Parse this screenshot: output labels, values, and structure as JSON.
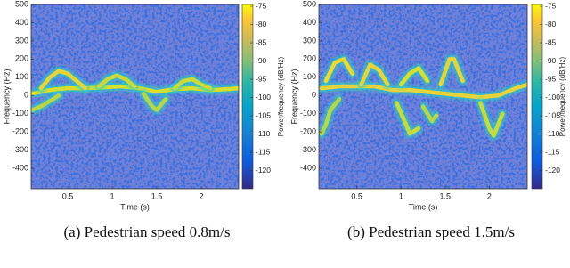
{
  "chart_data": [
    {
      "type": "spectrogram",
      "caption": "(a) Pedestrian speed 0.8m/s",
      "x_label": "Time (s)",
      "y_label": "Frequency (Hz)",
      "colorbar_label": "Power/frequency (dB/Hz)",
      "xlim": [
        0.09,
        2.42
      ],
      "xticks": [
        0.5,
        1,
        1.5,
        2
      ],
      "ylim": [
        -512,
        500
      ],
      "yticks": [
        -400,
        -300,
        -200,
        -100,
        0,
        100,
        200,
        300,
        400,
        500
      ],
      "clim": [
        -125,
        -74.5
      ],
      "cticks": [
        -120,
        -115,
        -110,
        -105,
        -100,
        -95,
        -90,
        -85,
        -80,
        -75
      ],
      "series": [
        {
          "color": "#d8df2c",
          "x": [
            0.1,
            0.3,
            0.5,
            0.7,
            0.9,
            1.1,
            1.3,
            1.5,
            1.7,
            1.9,
            2.1,
            2.3,
            2.42
          ],
          "values": [
            10,
            30,
            40,
            40,
            45,
            50,
            40,
            20,
            35,
            40,
            30,
            35,
            40
          ]
        },
        {
          "color": "#e8d43a",
          "x": [
            0.2,
            0.3,
            0.4,
            0.5,
            0.6,
            0.7
          ],
          "values": [
            40,
            100,
            135,
            120,
            80,
            40
          ]
        },
        {
          "color": "#c9da3a",
          "x": [
            0.85,
            0.95,
            1.05,
            1.15,
            1.25
          ],
          "values": [
            50,
            90,
            110,
            90,
            50
          ]
        },
        {
          "color": "#b9d64a",
          "x": [
            0.1,
            0.2,
            0.3,
            0.4
          ],
          "values": [
            -80,
            -60,
            -30,
            0
          ]
        },
        {
          "color": "#b9d64a",
          "x": [
            1.35,
            1.45,
            1.5,
            1.6
          ],
          "values": [
            10,
            -60,
            -80,
            -20
          ]
        },
        {
          "color": "#c9da3a",
          "x": [
            1.7,
            1.8,
            1.9,
            2.0,
            2.1
          ],
          "values": [
            40,
            80,
            90,
            60,
            40
          ]
        }
      ]
    },
    {
      "type": "spectrogram",
      "caption": "(b) Pedestrian speed 1.5m/s",
      "x_label": "Time (s)",
      "y_label": "Frequency (Hz)",
      "colorbar_label": "Power/frequency (dB/Hz)",
      "xlim": [
        0.07,
        2.43
      ],
      "xticks": [
        0.5,
        1,
        1.5,
        2
      ],
      "ylim": [
        -512,
        500
      ],
      "yticks": [
        -400,
        -300,
        -200,
        -100,
        0,
        100,
        200,
        300,
        400,
        500
      ],
      "clim": [
        -125,
        -74.5
      ],
      "cticks": [
        -120,
        -115,
        -110,
        -105,
        -100,
        -95,
        -90,
        -85,
        -80,
        -75
      ],
      "series": [
        {
          "color": "#e8d43a",
          "x": [
            0.1,
            0.3,
            0.5,
            0.7,
            0.9,
            1.1,
            1.3,
            1.5,
            1.7,
            1.9,
            2.1,
            2.3,
            2.43
          ],
          "values": [
            40,
            50,
            50,
            50,
            30,
            30,
            20,
            10,
            0,
            -10,
            0,
            40,
            60
          ]
        },
        {
          "color": "#f0d834",
          "x": [
            0.15,
            0.25,
            0.35,
            0.45
          ],
          "values": [
            80,
            180,
            200,
            120
          ]
        },
        {
          "color": "#e8d43a",
          "x": [
            0.55,
            0.65,
            0.75,
            0.85
          ],
          "values": [
            60,
            170,
            140,
            60
          ]
        },
        {
          "color": "#d8df2c",
          "x": [
            1.0,
            1.1,
            1.2,
            1.3
          ],
          "values": [
            60,
            120,
            150,
            80
          ]
        },
        {
          "color": "#e8d43a",
          "x": [
            1.45,
            1.55,
            1.6,
            1.7
          ],
          "values": [
            60,
            200,
            200,
            80
          ]
        },
        {
          "color": "#b9d64a",
          "x": [
            0.1,
            0.15,
            0.2,
            0.3
          ],
          "values": [
            -210,
            -160,
            -80,
            -20
          ]
        },
        {
          "color": "#c9da3a",
          "x": [
            0.95,
            1.05,
            1.1,
            1.2
          ],
          "values": [
            -40,
            -150,
            -210,
            -180
          ]
        },
        {
          "color": "#b9d64a",
          "x": [
            1.25,
            1.35,
            1.4
          ],
          "values": [
            -60,
            -140,
            -110
          ]
        },
        {
          "color": "#c9da3a",
          "x": [
            1.9,
            2.0,
            2.05,
            2.15
          ],
          "values": [
            -40,
            -180,
            -220,
            -100
          ]
        }
      ]
    }
  ]
}
